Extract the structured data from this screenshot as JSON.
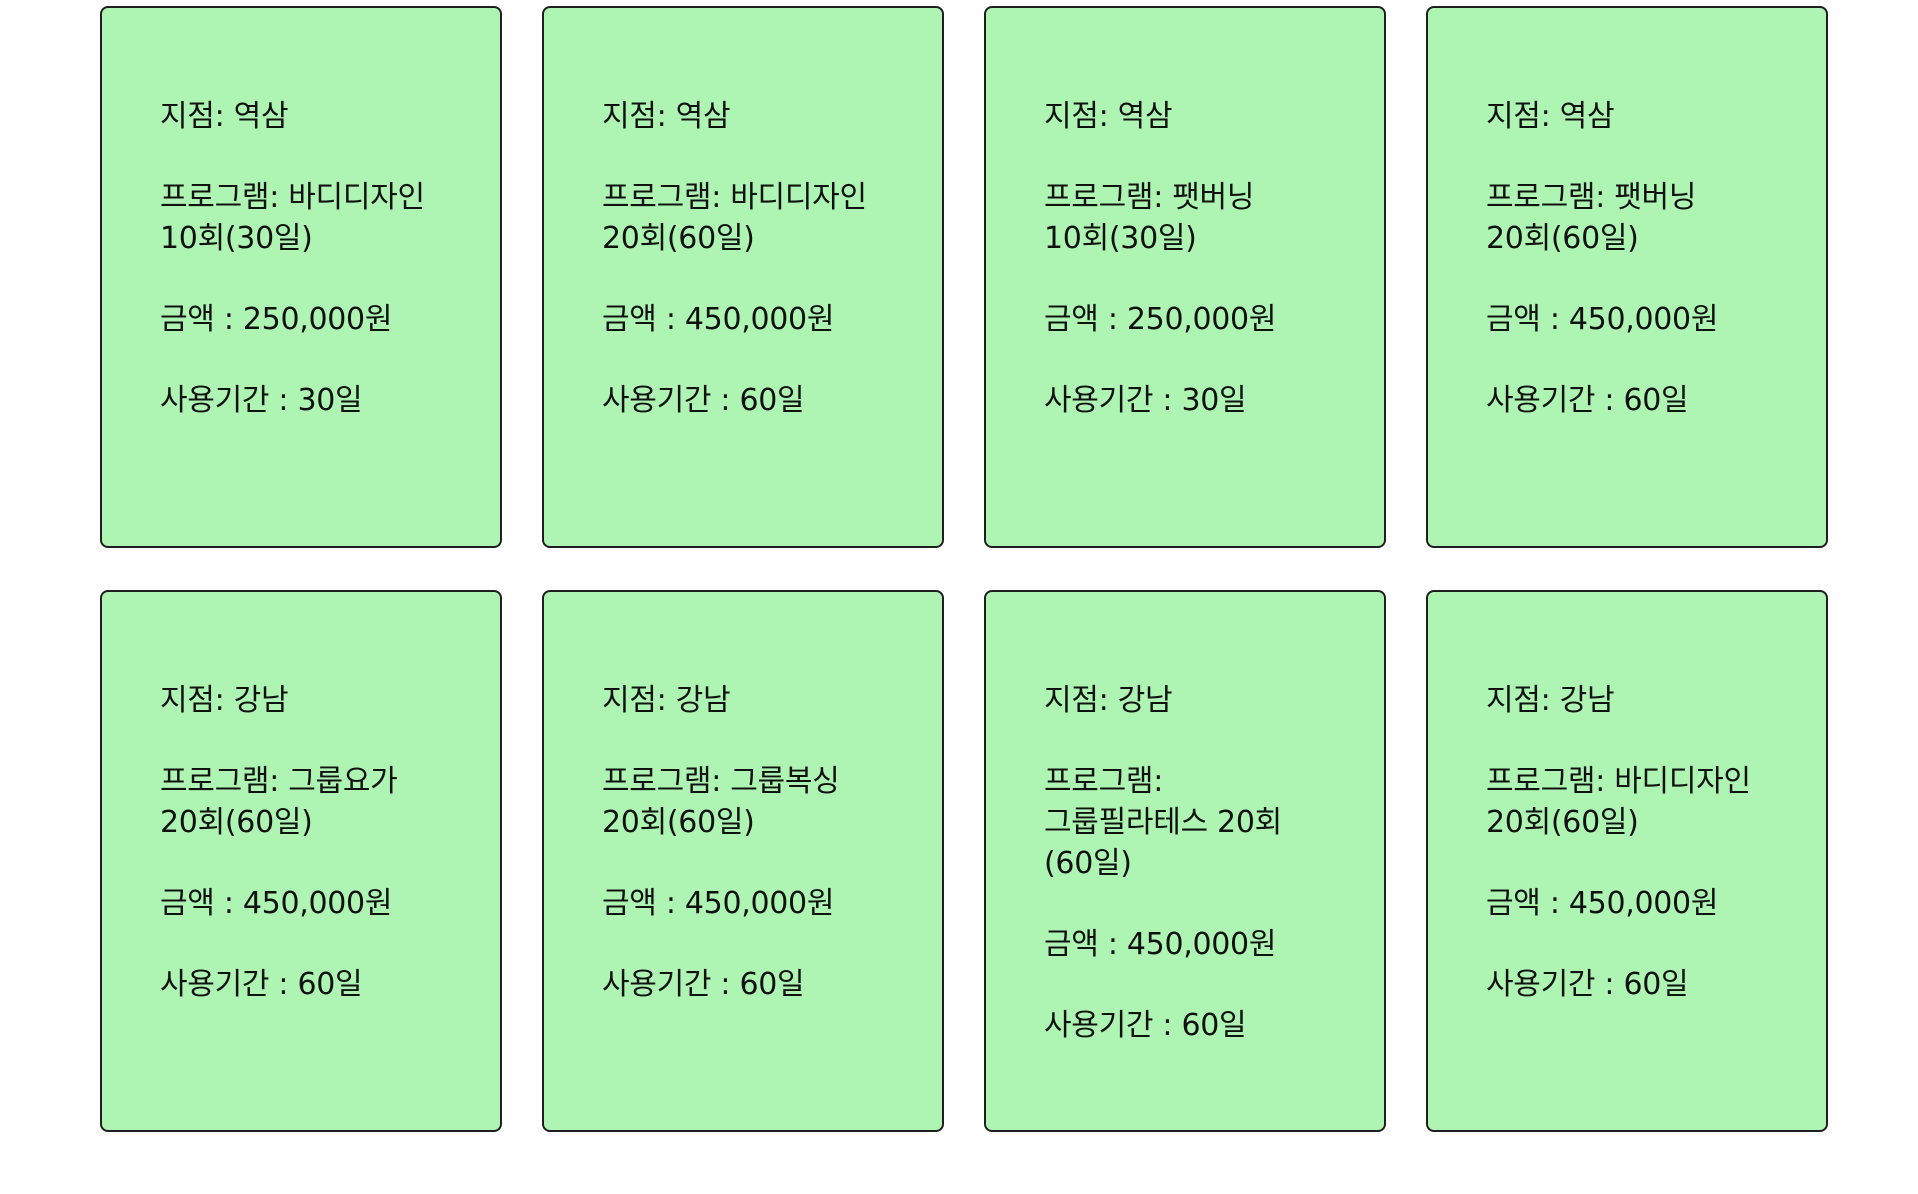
{
  "colors": {
    "card_background": "#aef5b4",
    "card_border": "#1f1f1f",
    "text": "#111111",
    "page_background": "#ffffff"
  },
  "cards": [
    {
      "branch": "지점: 역삼",
      "program": "프로그램: 바디디자인 10회(30일)",
      "price": "금액 : 250,000원",
      "period": "사용기간 : 30일"
    },
    {
      "branch": "지점: 역삼",
      "program": "프로그램: 바디디자인 20회(60일)",
      "price": "금액 : 450,000원",
      "period": "사용기간 : 60일"
    },
    {
      "branch": "지점: 역삼",
      "program": "프로그램: 팻버닝 10회(30일)",
      "price": "금액 : 250,000원",
      "period": "사용기간 : 30일"
    },
    {
      "branch": "지점: 역삼",
      "program": "프로그램: 팻버닝 20회(60일)",
      "price": "금액 : 450,000원",
      "period": "사용기간 : 60일"
    },
    {
      "branch": "지점: 강남",
      "program": "프로그램: 그룹요가 20회(60일)",
      "price": "금액 : 450,000원",
      "period": "사용기간 : 60일"
    },
    {
      "branch": "지점: 강남",
      "program": "프로그램: 그룹복싱 20회(60일)",
      "price": "금액 : 450,000원",
      "period": "사용기간 : 60일"
    },
    {
      "branch": "지점: 강남",
      "program": "프로그램: 그룹필라테스 20회(60일)",
      "price": "금액 : 450,000원",
      "period": "사용기간 : 60일"
    },
    {
      "branch": "지점: 강남",
      "program": "프로그램: 바디디자인 20회(60일)",
      "price": "금액 : 450,000원",
      "period": "사용기간 : 60일"
    }
  ]
}
